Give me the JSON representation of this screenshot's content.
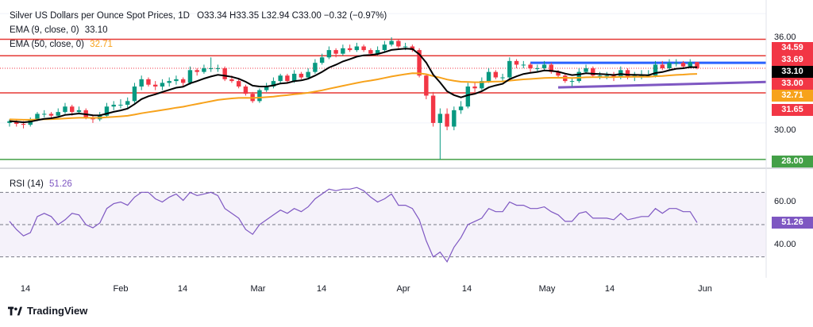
{
  "legend": {
    "title": "Silver US Dollars per Ounce Spot Prices, 1D",
    "ohlc": "O33.34  H33.35  L32.94  C33.00  −0.32 (−0.97%)",
    "ema9_label": "EMA (9, close, 0)",
    "ema9_value": "33.10",
    "ema50_label": "EMA (50, close, 0)",
    "ema50_value": "32.71",
    "rsi_label": "RSI (14)",
    "rsi_value": "51.26"
  },
  "colors": {
    "up": "#089981",
    "down": "#f23645",
    "ema9": "#000000",
    "ema50": "#f7a21b",
    "rsi": "#7e57c2",
    "resistance": "#e53935",
    "support_green": "#43a047",
    "trend_blue": "#2962ff",
    "trend_purple": "#7e57c2"
  },
  "price_axis": {
    "ticks": [
      "36.00",
      "30.00"
    ],
    "badges": [
      "34.59",
      "33.69",
      "33.10",
      "33.00",
      "32.71",
      "31.65",
      "28.00"
    ]
  },
  "rsi_axis": {
    "ticks": [
      "60.00",
      "40.00"
    ],
    "badge": "51.26"
  },
  "time_axis": [
    "14",
    "Feb",
    "14",
    "Mar",
    "14",
    "Apr",
    "14",
    "May",
    "14",
    "Jun"
  ],
  "footer": {
    "brand": "TradingView"
  },
  "chart_data": {
    "type": "candlestick",
    "price_ylim": [
      27.6,
      36.4
    ],
    "rsi_ylim": [
      20,
      80
    ],
    "horizontal_levels": [
      34.59,
      33.69,
      31.65,
      28.0
    ],
    "trend_channel": {
      "upper": [
        33.3,
        33.3
      ],
      "lower": [
        31.95,
        32.25
      ]
    },
    "dates": [
      "Jan 9",
      "Jan 10",
      "Jan 13",
      "Jan 14",
      "Jan 15",
      "Jan 16",
      "Jan 17",
      "Jan 20",
      "Jan 21",
      "Jan 22",
      "Jan 23",
      "Jan 24",
      "Jan 27",
      "Jan 28",
      "Jan 29",
      "Jan 30",
      "Jan 31",
      "Feb 3",
      "Feb 4",
      "Feb 5",
      "Feb 6",
      "Feb 7",
      "Feb 10",
      "Feb 11",
      "Feb 12",
      "Feb 13",
      "Feb 14",
      "Feb 17",
      "Feb 18",
      "Feb 19",
      "Feb 20",
      "Feb 21",
      "Feb 24",
      "Feb 25",
      "Feb 26",
      "Feb 27",
      "Feb 28",
      "Mar 3",
      "Mar 4",
      "Mar 5",
      "Mar 6",
      "Mar 7",
      "Mar 10",
      "Mar 11",
      "Mar 12",
      "Mar 13",
      "Mar 14",
      "Mar 17",
      "Mar 18",
      "Mar 19",
      "Mar 20",
      "Mar 21",
      "Mar 24",
      "Mar 25",
      "Mar 26",
      "Mar 27",
      "Mar 28",
      "Mar 31",
      "Apr 1",
      "Apr 2",
      "Apr 3",
      "Apr 4",
      "Apr 7",
      "Apr 8",
      "Apr 9",
      "Apr 10",
      "Apr 11",
      "Apr 14",
      "Apr 15",
      "Apr 16",
      "Apr 17",
      "Apr 18",
      "Apr 21",
      "Apr 22",
      "Apr 23",
      "Apr 24",
      "Apr 25",
      "Apr 28",
      "Apr 29",
      "Apr 30",
      "May 1",
      "May 2",
      "May 5",
      "May 6",
      "May 7",
      "May 8",
      "May 9",
      "May 12",
      "May 13",
      "May 14",
      "May 15",
      "May 16",
      "May 19",
      "May 20",
      "May 21",
      "May 22",
      "May 23",
      "May 26",
      "May 27",
      "May 28"
    ],
    "open": [
      30.0,
      30.1,
      29.95,
      29.9,
      30.2,
      30.5,
      30.5,
      30.4,
      30.6,
      30.9,
      30.6,
      30.7,
      30.3,
      30.2,
      30.4,
      30.9,
      31.0,
      31.0,
      31.2,
      32.0,
      32.4,
      32.1,
      32.0,
      32.2,
      32.3,
      32.4,
      32.2,
      32.9,
      32.8,
      33.0,
      33.0,
      33.0,
      32.4,
      32.3,
      32.0,
      31.6,
      31.2,
      31.8,
      32.0,
      32.3,
      32.6,
      32.3,
      32.7,
      32.5,
      32.8,
      33.3,
      33.6,
      34.0,
      33.8,
      34.1,
      34.0,
      34.2,
      34.0,
      33.8,
      34.0,
      34.3,
      34.5,
      34.2,
      34.2,
      34.0,
      32.6,
      31.5,
      30.0,
      30.5,
      29.8,
      30.7,
      30.9,
      32.0,
      31.9,
      32.3,
      32.8,
      32.5,
      32.5,
      33.4,
      33.2,
      33.2,
      33.0,
      33.0,
      33.2,
      32.8,
      32.6,
      32.3,
      32.3,
      32.8,
      33.0,
      32.6,
      32.6,
      32.6,
      32.5,
      32.9,
      32.5,
      32.6,
      32.6,
      32.6,
      33.2,
      33.0,
      33.3,
      33.3,
      33.1,
      33.34
    ],
    "close": [
      30.1,
      29.95,
      29.9,
      30.2,
      30.5,
      30.5,
      30.4,
      30.6,
      30.9,
      30.6,
      30.7,
      30.3,
      30.2,
      30.4,
      30.9,
      31.0,
      31.0,
      31.2,
      32.0,
      32.4,
      32.1,
      32.0,
      32.2,
      32.3,
      32.4,
      32.2,
      32.9,
      32.8,
      33.0,
      33.0,
      33.0,
      32.4,
      32.3,
      32.0,
      31.6,
      31.2,
      31.8,
      32.0,
      32.3,
      32.6,
      32.3,
      32.7,
      32.5,
      32.8,
      33.3,
      33.6,
      34.0,
      33.8,
      34.1,
      34.0,
      34.2,
      34.0,
      33.8,
      34.0,
      34.3,
      34.5,
      34.2,
      34.2,
      34.0,
      32.6,
      31.5,
      30.0,
      30.5,
      29.8,
      30.7,
      30.9,
      32.0,
      31.9,
      32.3,
      32.8,
      32.5,
      32.5,
      33.4,
      33.2,
      33.2,
      33.0,
      33.0,
      33.2,
      32.8,
      32.6,
      32.3,
      32.3,
      32.8,
      33.0,
      32.6,
      32.6,
      32.6,
      32.5,
      32.9,
      32.5,
      32.6,
      32.6,
      32.6,
      33.2,
      33.0,
      33.3,
      33.3,
      33.1,
      33.34,
      33.0
    ],
    "high": [
      30.2,
      30.2,
      30.1,
      30.3,
      30.6,
      30.7,
      30.6,
      30.8,
      31.1,
      31.0,
      30.9,
      30.8,
      30.4,
      30.6,
      31.1,
      31.2,
      31.3,
      31.4,
      32.2,
      32.6,
      32.5,
      32.3,
      32.4,
      32.5,
      32.6,
      32.5,
      33.1,
      33.0,
      33.2,
      33.6,
      33.2,
      33.1,
      32.6,
      32.4,
      32.1,
      31.7,
      31.9,
      32.2,
      32.5,
      32.7,
      32.7,
      32.9,
      32.8,
      33.0,
      33.5,
      33.8,
      34.2,
      34.1,
      34.3,
      34.3,
      34.4,
      34.3,
      34.1,
      34.2,
      34.5,
      34.7,
      34.6,
      34.4,
      34.3,
      34.1,
      32.7,
      31.7,
      30.8,
      30.8,
      30.9,
      31.2,
      32.2,
      32.2,
      32.5,
      33.0,
      32.9,
      32.7,
      33.6,
      33.5,
      33.4,
      33.3,
      33.2,
      33.4,
      33.3,
      32.9,
      32.7,
      32.5,
      33.0,
      33.2,
      33.1,
      32.8,
      32.8,
      32.8,
      33.1,
      33.0,
      32.8,
      32.9,
      32.9,
      33.4,
      33.4,
      33.5,
      33.5,
      33.4,
      33.5,
      33.35
    ],
    "low": [
      29.8,
      29.8,
      29.7,
      29.8,
      30.1,
      30.3,
      30.2,
      30.3,
      30.5,
      30.4,
      30.5,
      30.2,
      30.0,
      30.1,
      30.3,
      30.7,
      30.8,
      30.8,
      31.1,
      31.8,
      32.0,
      31.8,
      31.8,
      32.0,
      32.1,
      32.0,
      32.1,
      32.6,
      32.7,
      32.8,
      32.8,
      32.3,
      32.2,
      31.9,
      31.5,
      31.1,
      31.1,
      31.7,
      31.9,
      32.2,
      32.2,
      32.2,
      32.4,
      32.4,
      32.7,
      33.2,
      33.5,
      33.6,
      33.7,
      33.9,
      33.9,
      33.9,
      33.7,
      33.7,
      33.9,
      34.2,
      34.1,
      34.0,
      33.9,
      32.5,
      31.3,
      29.8,
      28.0,
      29.6,
      29.6,
      30.5,
      30.8,
      31.7,
      31.8,
      32.2,
      32.4,
      32.3,
      32.4,
      33.0,
      33.0,
      32.8,
      32.8,
      32.9,
      32.7,
      32.5,
      32.2,
      32.0,
      32.2,
      32.7,
      32.5,
      32.4,
      32.4,
      32.3,
      32.4,
      32.4,
      32.3,
      32.4,
      32.5,
      32.5,
      32.9,
      32.9,
      33.1,
      33.0,
      33.0,
      32.94
    ],
    "rsi": [
      52,
      47,
      43,
      45,
      55,
      57,
      55,
      50,
      53,
      57,
      56,
      50,
      48,
      51,
      60,
      63,
      64,
      62,
      67,
      70,
      70,
      66,
      64,
      67,
      69,
      65,
      70,
      68,
      69,
      70,
      68,
      60,
      57,
      54,
      47,
      44,
      50,
      53,
      56,
      59,
      57,
      60,
      58,
      61,
      66,
      69,
      72,
      71,
      72,
      72,
      73,
      71,
      67,
      64,
      66,
      69,
      62,
      62,
      60,
      53,
      40,
      30,
      33,
      27,
      36,
      42,
      50,
      52,
      54,
      60,
      58,
      58,
      64,
      62,
      62,
      60,
      60,
      61,
      58,
      56,
      52,
      52,
      57,
      58,
      54,
      54,
      54,
      53,
      57,
      53,
      54,
      55,
      55,
      60,
      57,
      60,
      60,
      58,
      58,
      51.26
    ]
  }
}
